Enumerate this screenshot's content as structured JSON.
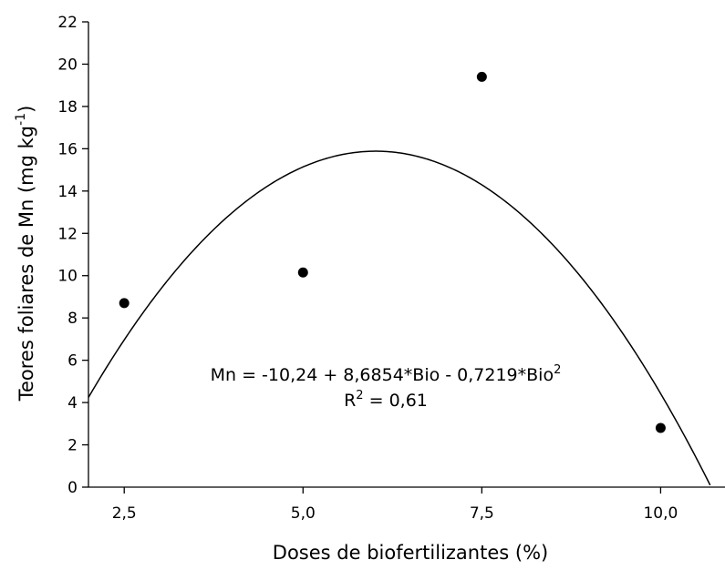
{
  "chart_data": {
    "type": "scatter",
    "xlabel": "Doses de biofertilizantes (%)",
    "ylabel": {
      "main": "Teores foliares de Mn (mg kg",
      "sup": "-1",
      "end": ")"
    },
    "xlim": [
      2.0,
      10.9
    ],
    "ylim": [
      0,
      22
    ],
    "x_ticks": [
      2.5,
      5.0,
      7.5,
      10.0
    ],
    "x_tick_labels": [
      "2,5",
      "5,0",
      "7,5",
      "10,0"
    ],
    "y_ticks": [
      0,
      2,
      4,
      6,
      8,
      10,
      12,
      14,
      16,
      18,
      20,
      22
    ],
    "y_tick_labels": [
      "0",
      "2",
      "4",
      "6",
      "8",
      "10",
      "12",
      "14",
      "16",
      "18",
      "20",
      "22"
    ],
    "points": [
      {
        "x": 2.5,
        "y": 8.7
      },
      {
        "x": 5.0,
        "y": 10.15
      },
      {
        "x": 7.5,
        "y": 19.4
      },
      {
        "x": 10.0,
        "y": 2.8
      }
    ],
    "fit": {
      "intercept": -10.24,
      "b1": 8.6854,
      "b2": -0.7219
    },
    "annotation": {
      "equation_main": "Mn = -10,24 + 8,6854*Bio - 0,7219*Bio",
      "equation_sup": "2",
      "r2_prefix": "R",
      "r2_sup": "2",
      "r2_value": " = 0,61"
    },
    "grid": false,
    "legend": "none"
  }
}
